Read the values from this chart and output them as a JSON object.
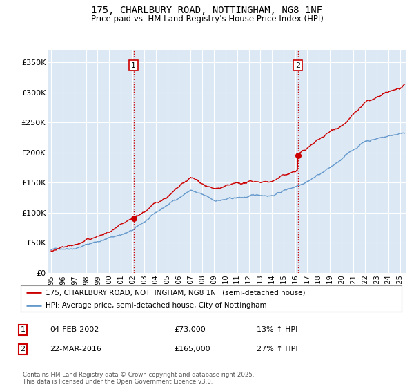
{
  "title_line1": "175, CHARLBURY ROAD, NOTTINGHAM, NG8 1NF",
  "title_line2": "Price paid vs. HM Land Registry's House Price Index (HPI)",
  "ylabel_ticks": [
    "£0",
    "£50K",
    "£100K",
    "£150K",
    "£200K",
    "£250K",
    "£300K",
    "£350K"
  ],
  "ytick_values": [
    0,
    50000,
    100000,
    150000,
    200000,
    250000,
    300000,
    350000
  ],
  "ylim": [
    0,
    370000
  ],
  "xlim_start": 1994.7,
  "xlim_end": 2025.5,
  "purchase1": {
    "label": "1",
    "date": "04-FEB-2002",
    "price": 73000,
    "hpi_pct": "13% ↑ HPI",
    "x": 2002.09
  },
  "purchase2": {
    "label": "2",
    "date": "22-MAR-2016",
    "price": 165000,
    "hpi_pct": "27% ↑ HPI",
    "x": 2016.22
  },
  "vline_color": "#cc0000",
  "property_line_color": "#cc0000",
  "hpi_line_color": "#6699cc",
  "dot_color": "#cc0000",
  "legend_label1": "175, CHARLBURY ROAD, NOTTINGHAM, NG8 1NF (semi-detached house)",
  "legend_label2": "HPI: Average price, semi-detached house, City of Nottingham",
  "footnote": "Contains HM Land Registry data © Crown copyright and database right 2025.\nThis data is licensed under the Open Government Licence v3.0.",
  "plot_bg_color": "#dce9f5",
  "grid_color": "#ffffff",
  "xtick_years": [
    1995,
    1996,
    1997,
    1998,
    1999,
    2000,
    2001,
    2002,
    2003,
    2004,
    2005,
    2006,
    2007,
    2008,
    2009,
    2010,
    2011,
    2012,
    2013,
    2014,
    2015,
    2016,
    2017,
    2018,
    2019,
    2020,
    2021,
    2022,
    2023,
    2024,
    2025
  ]
}
